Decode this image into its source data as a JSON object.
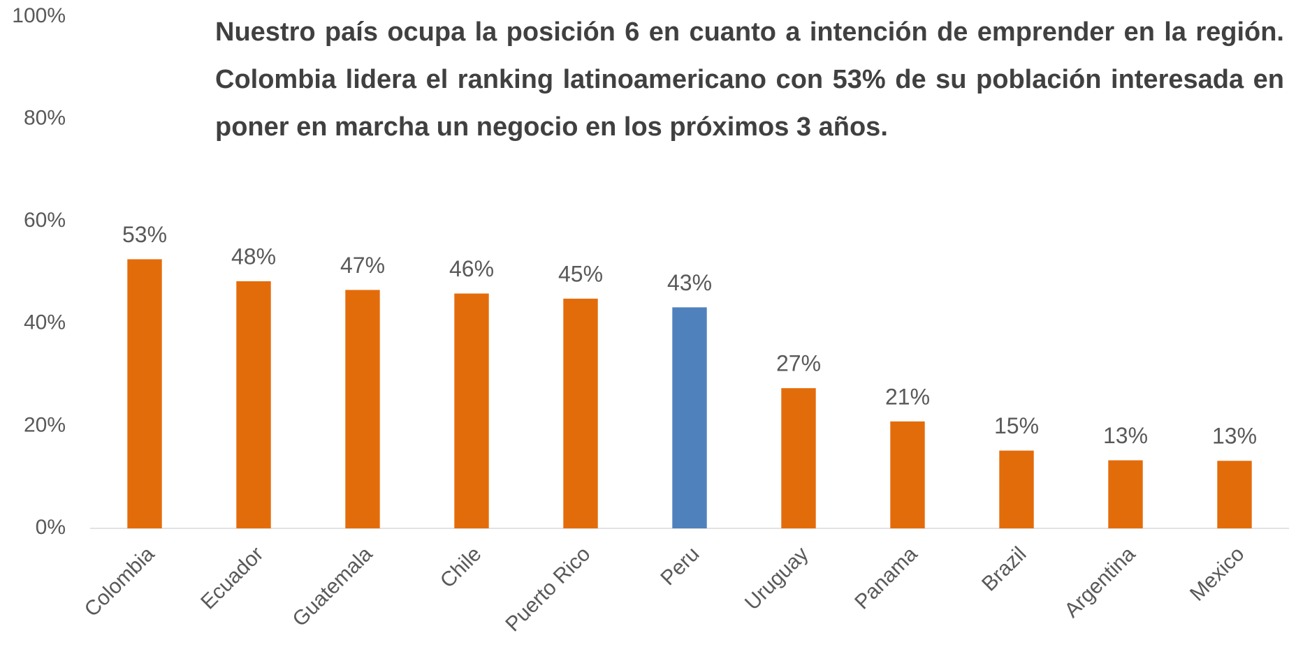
{
  "chart_data": {
    "type": "bar",
    "title": "Nuestro país ocupa la posición 6 en cuanto a intención de emprender en la región. Colombia lidera el ranking latinoamericano con 53% de su población interesada en poner en marcha un negocio en los próximos 3 años.",
    "categories": [
      "Colombia",
      "Ecuador",
      "Guatemala",
      "Chile",
      "Puerto Rico",
      "Peru",
      "Uruguay",
      "Panama",
      "Brazil",
      "Argentina",
      "Mexico"
    ],
    "values": [
      52.6,
      48.3,
      46.6,
      45.9,
      44.9,
      43.2,
      27.4,
      20.9,
      15.2,
      13.3,
      13.2
    ],
    "value_labels": [
      "53%",
      "48%",
      "47%",
      "46%",
      "45%",
      "43%",
      "27%",
      "21%",
      "15%",
      "13%",
      "13%"
    ],
    "colors": [
      "#e36c0a",
      "#e36c0a",
      "#e36c0a",
      "#e36c0a",
      "#e36c0a",
      "#4f81bd",
      "#e36c0a",
      "#e36c0a",
      "#e36c0a",
      "#e36c0a",
      "#e36c0a"
    ],
    "ylim": [
      0,
      100
    ],
    "yticks": [
      {
        "value": 0,
        "label": "0%"
      },
      {
        "value": 20,
        "label": "20%"
      },
      {
        "value": 40,
        "label": "40%"
      },
      {
        "value": 60,
        "label": "60%"
      },
      {
        "value": 80,
        "label": "80%"
      },
      {
        "value": 100,
        "label": "100%"
      }
    ],
    "grid": false
  }
}
